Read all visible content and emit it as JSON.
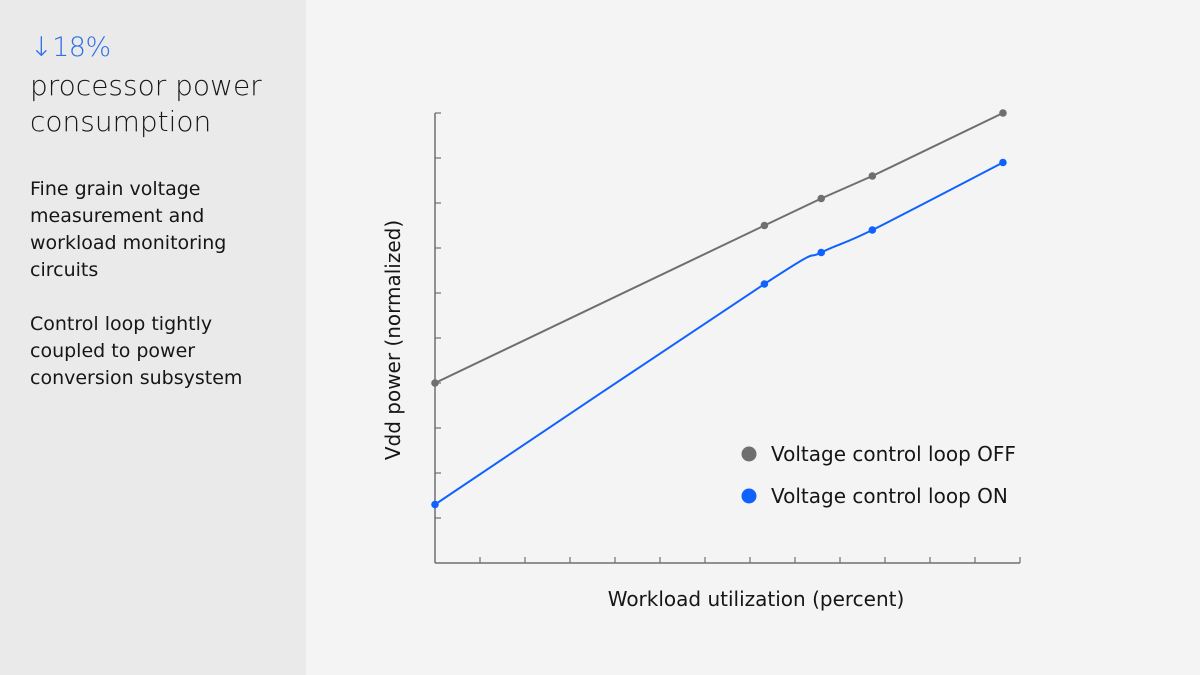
{
  "sidebar": {
    "stat": "↓18%",
    "headline": "processor power consumption",
    "paragraphs": [
      "Fine grain voltage measurement and workload monitoring circuits",
      "Control loop tightly coupled to power conversion subsystem"
    ]
  },
  "colors": {
    "accent": "#0f62fe",
    "off": "#6f6f6f",
    "axis": "#6f6f6f"
  },
  "chart_data": {
    "type": "line",
    "xlabel": "Workload utilization (percent)",
    "ylabel": "Vdd power (normalized)",
    "xlim": [
      0,
      103
    ],
    "ylim": [
      0,
      1
    ],
    "x_tick_count": 14,
    "y_tick_count": 11,
    "tick_labels": false,
    "grid": false,
    "legend_placement": "bottom-right",
    "series": [
      {
        "name": "Voltage control loop OFF",
        "color": "#6f6f6f",
        "x": [
          0,
          58,
          68,
          77,
          100
        ],
        "y": [
          0.4,
          0.75,
          0.81,
          0.86,
          1.0
        ],
        "smooth": false
      },
      {
        "name": "Voltage control loop ON",
        "color": "#0f62fe",
        "x": [
          0,
          58,
          68,
          77,
          100
        ],
        "y": [
          0.13,
          0.62,
          0.69,
          0.74,
          0.89
        ],
        "smooth": true
      }
    ]
  }
}
